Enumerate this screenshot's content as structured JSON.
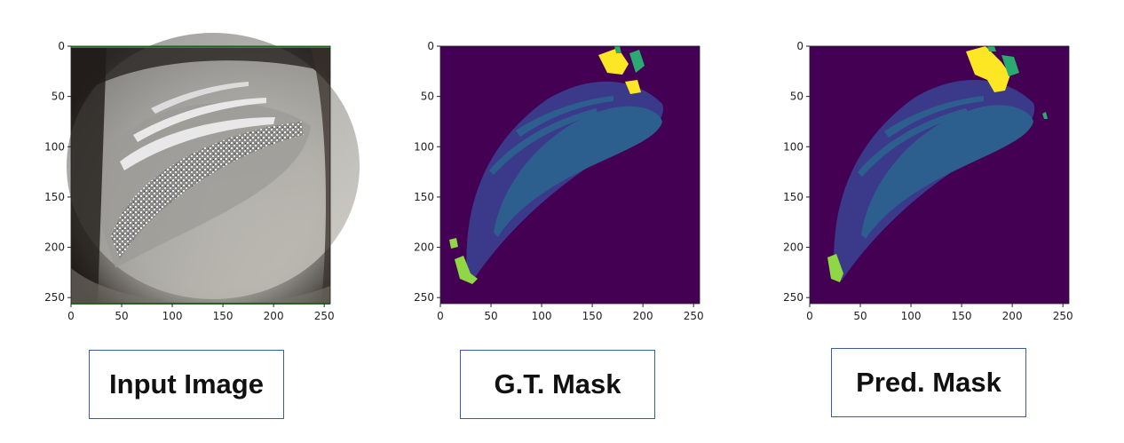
{
  "panels": [
    {
      "id": "input",
      "caption": "Input Image"
    },
    {
      "id": "gt",
      "caption": "G.T. Mask"
    },
    {
      "id": "pred",
      "caption": "Pred. Mask"
    }
  ],
  "axes": {
    "x_ticks": [
      "0",
      "50",
      "100",
      "150",
      "200",
      "250"
    ],
    "y_ticks": [
      "0",
      "50",
      "100",
      "150",
      "200",
      "250"
    ]
  },
  "colors": {
    "background_class": "#440154",
    "class_1": "#3b3a8a",
    "class_2": "#2c5f8e",
    "class_3": "#2aaa70",
    "class_4": "#8fd744",
    "class_5": "#fde725"
  }
}
